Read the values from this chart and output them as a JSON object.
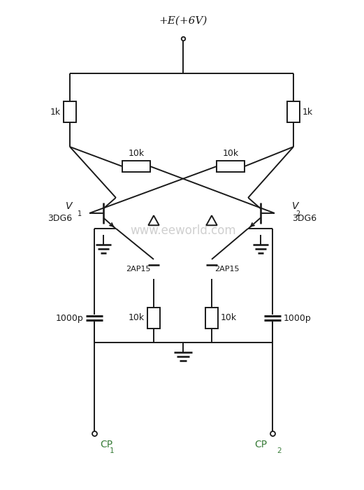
{
  "title": "+E(+6V)",
  "background_color": "#ffffff",
  "line_color": "#1a1a1a",
  "text_color": "#1a1a1a",
  "green_color": "#3a7d3a",
  "figsize": [
    5.21,
    7.01
  ],
  "dpi": 100,
  "components": {
    "R1_label": "1k",
    "R2_label": "1k",
    "R3_label": "10k",
    "R4_label": "10k",
    "R5_label": "10k",
    "R6_label": "10k",
    "C1_label": "1000p",
    "C2_label": "1000p",
    "D1_label": "2AP15",
    "D2_label": "2AP15",
    "T1_label": "3DG6",
    "T2_label": "3DG6",
    "V1_label": "V",
    "V1_sub": "1",
    "V2_label": "V",
    "V2_sub": "2",
    "CP1_label": "CP",
    "CP1_sub": "1",
    "CP2_label": "CP",
    "CP2_sub": "2"
  }
}
